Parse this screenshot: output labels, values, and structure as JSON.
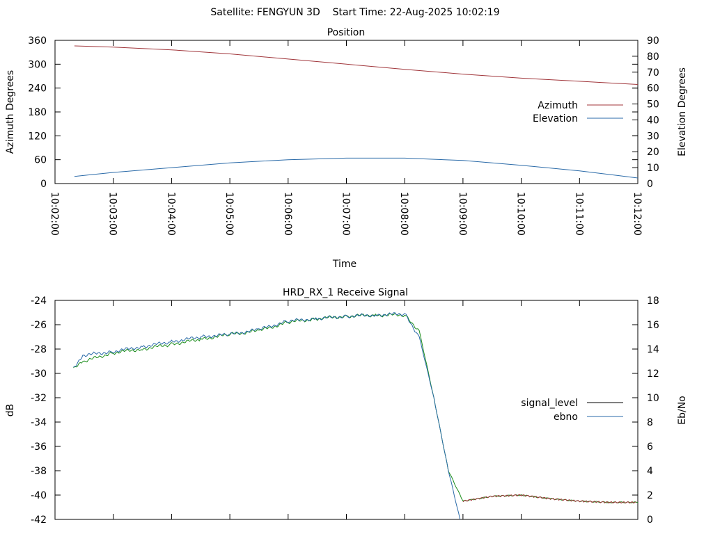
{
  "header": {
    "text": "Satellite: FENGYUN 3D    Start Time: 22-Aug-2025 10:02:19"
  },
  "colors": {
    "azimuth": "#a0353a",
    "elevation": "#2a6aa8",
    "signal_level": "#1a8c1a",
    "ebno": "#2a6aa8",
    "tail": "#a0353a",
    "legend_signal": "#000000"
  },
  "chart_data": [
    {
      "type": "line",
      "title": "Position",
      "xlabel": "Time",
      "ylabel": "Azimuth Degrees",
      "y2label": "Elevation Degrees",
      "xlim": [
        "10:02:00",
        "10:12:00"
      ],
      "ylim": [
        0,
        360
      ],
      "y2lim": [
        0,
        90
      ],
      "x_ticks": [
        "10:02:00",
        "10:03:00",
        "10:04:00",
        "10:05:00",
        "10:06:00",
        "10:07:00",
        "10:08:00",
        "10:09:00",
        "10:10:00",
        "10:11:00",
        "10:12:00"
      ],
      "y_ticks": [
        "0",
        "60",
        "120",
        "180",
        "240",
        "300",
        "360"
      ],
      "y2_ticks": [
        "0",
        "10",
        "20",
        "30",
        "40",
        "50",
        "60",
        "70",
        "80",
        "90"
      ],
      "legend_position": "right",
      "series": [
        {
          "name": "Azimuth",
          "axis": "left",
          "x": [
            "10:02:20",
            "10:03:00",
            "10:04:00",
            "10:05:00",
            "10:06:00",
            "10:07:00",
            "10:08:00",
            "10:09:00",
            "10:10:00",
            "10:11:00",
            "10:12:00"
          ],
          "values": [
            346,
            343,
            336,
            326,
            313,
            300,
            287,
            275,
            265,
            257,
            249
          ]
        },
        {
          "name": "Elevation",
          "axis": "right",
          "x": [
            "10:02:20",
            "10:03:00",
            "10:04:00",
            "10:05:00",
            "10:06:00",
            "10:07:00",
            "10:08:00",
            "10:09:00",
            "10:10:00",
            "10:11:00",
            "10:12:00"
          ],
          "values": [
            4.5,
            7,
            10,
            13,
            15,
            16,
            16,
            14.5,
            11.5,
            8,
            3.5
          ]
        }
      ]
    },
    {
      "type": "line",
      "title": "HRD_RX_1 Receive Signal",
      "xlabel": "",
      "ylabel": "dB",
      "y2label": "Eb/No",
      "xlim": [
        "10:02:00",
        "10:12:00"
      ],
      "ylim": [
        -42,
        -24
      ],
      "y2lim": [
        0,
        18
      ],
      "y_ticks": [
        "-24",
        "-26",
        "-28",
        "-30",
        "-32",
        "-34",
        "-36",
        "-38",
        "-40",
        "-42"
      ],
      "y2_ticks": [
        "18",
        "16",
        "14",
        "12",
        "10",
        "8",
        "6",
        "4",
        "2",
        "0"
      ],
      "legend_position": "right",
      "series": [
        {
          "name": "signal_level",
          "axis": "left",
          "x": [
            "10:02:19",
            "10:02:30",
            "10:03:00",
            "10:03:30",
            "10:04:00",
            "10:04:30",
            "10:05:00",
            "10:05:30",
            "10:06:00",
            "10:06:30",
            "10:07:00",
            "10:07:30",
            "10:08:00",
            "10:08:15",
            "10:08:30",
            "10:08:45",
            "10:09:00",
            "10:09:30",
            "10:10:00",
            "10:10:30",
            "10:11:00",
            "10:11:30",
            "10:12:00"
          ],
          "values": [
            -29.5,
            -29.0,
            -28.3,
            -28.0,
            -27.6,
            -27.2,
            -26.8,
            -26.5,
            -25.8,
            -25.5,
            -25.3,
            -25.2,
            -25.2,
            -26.5,
            -32.0,
            -38.0,
            -40.5,
            -40.1,
            -40.0,
            -40.3,
            -40.5,
            -40.6,
            -40.6
          ]
        },
        {
          "name": "ebno",
          "axis": "right",
          "x": [
            "10:02:19",
            "10:02:30",
            "10:03:00",
            "10:03:30",
            "10:04:00",
            "10:04:30",
            "10:05:00",
            "10:05:30",
            "10:06:00",
            "10:06:30",
            "10:07:00",
            "10:07:30",
            "10:08:00",
            "10:08:15",
            "10:08:30",
            "10:08:45",
            "10:08:57"
          ],
          "values": [
            12.5,
            13.5,
            13.8,
            14.2,
            14.6,
            15.0,
            15.2,
            15.6,
            16.3,
            16.5,
            16.7,
            16.8,
            16.9,
            15.0,
            10.0,
            4.0,
            0.0
          ]
        }
      ]
    }
  ]
}
